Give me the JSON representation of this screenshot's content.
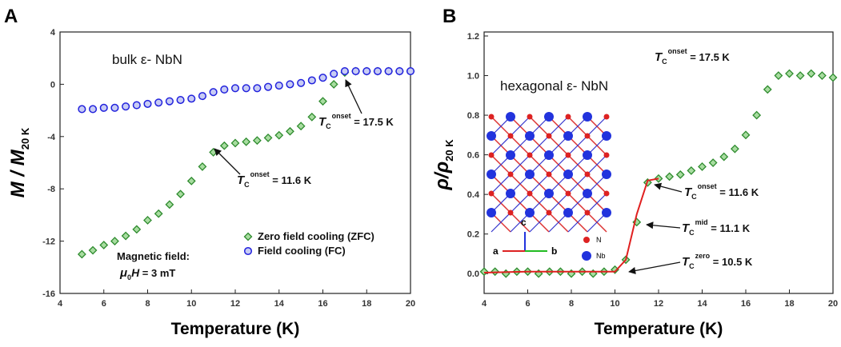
{
  "chart_data": [
    {
      "type": "scatter",
      "panel_label": "A",
      "x_label": "Temperature (K)",
      "y_label": {
        "main": "M / M",
        "sub": "20 K"
      },
      "x": [
        5,
        5.5,
        6,
        6.5,
        7,
        7.5,
        8,
        8.5,
        9,
        9.5,
        10,
        10.5,
        11,
        11.5,
        12,
        12.5,
        13,
        13.5,
        14,
        14.5,
        15,
        15.5,
        16,
        16.5,
        17,
        17.5,
        18,
        18.5,
        19,
        19.5,
        20
      ],
      "series": [
        {
          "name": "Zero field cooling (ZFC)",
          "color": "#2e8b2e",
          "marker": "diamond",
          "values": [
            -13.0,
            -12.7,
            -12.3,
            -12.0,
            -11.6,
            -11.1,
            -10.4,
            -9.9,
            -9.2,
            -8.4,
            -7.4,
            -6.3,
            -5.2,
            -4.7,
            -4.5,
            -4.4,
            -4.3,
            -4.1,
            -3.9,
            -3.6,
            -3.2,
            -2.5,
            -1.3,
            0.0,
            0.9,
            1.0,
            1.0,
            1.0,
            1.0,
            1.0,
            1.0
          ]
        },
        {
          "name": "Field cooling (FC)",
          "color": "#2222dd",
          "marker": "circle",
          "values": [
            -1.9,
            -1.9,
            -1.8,
            -1.8,
            -1.7,
            -1.6,
            -1.5,
            -1.4,
            -1.3,
            -1.2,
            -1.1,
            -0.9,
            -0.6,
            -0.4,
            -0.3,
            -0.3,
            -0.3,
            -0.2,
            -0.1,
            0.0,
            0.1,
            0.3,
            0.5,
            0.8,
            1.0,
            1.0,
            1.0,
            1.0,
            1.0,
            1.0,
            1.0
          ]
        }
      ],
      "xlim": [
        4,
        20
      ],
      "xticks": [
        4,
        6,
        8,
        10,
        12,
        14,
        16,
        18,
        20
      ],
      "ylim": [
        -16,
        4
      ],
      "yticks": [
        -16,
        -12,
        -8,
        -4,
        0,
        4
      ],
      "annotations": [
        {
          "text": "bulk ε- NbN"
        },
        {
          "symbol": "T",
          "sub": "C",
          "sup": "onset",
          "text": " = 17.5 K"
        },
        {
          "symbol": "T",
          "sub": "C",
          "sup": "onset",
          "text": " = 11.6 K"
        },
        {
          "text": "Magnetic field:"
        },
        {
          "symbol": "μ",
          "sub": "0",
          "tail": "H",
          "text": " = 3 mT"
        }
      ]
    },
    {
      "type": "scatter",
      "panel_label": "B",
      "x_label": "Temperature (K)",
      "y_label": {
        "main": "ρ/ρ",
        "sub": "20 K"
      },
      "x": [
        4,
        4.5,
        5,
        5.5,
        6,
        6.5,
        7,
        7.5,
        8,
        8.5,
        9,
        9.5,
        10,
        10.5,
        11,
        11.5,
        12,
        12.5,
        13,
        13.5,
        14,
        14.5,
        15,
        15.5,
        16,
        16.5,
        17,
        17.5,
        18,
        18.5,
        19,
        19.5,
        20
      ],
      "series": [
        {
          "color": "#2e8b2e",
          "marker": "diamond",
          "values": [
            0.01,
            0.01,
            0.0,
            0.01,
            0.01,
            0.0,
            0.01,
            0.01,
            0.0,
            0.01,
            0.0,
            0.01,
            0.02,
            0.07,
            0.26,
            0.46,
            0.48,
            0.49,
            0.5,
            0.52,
            0.54,
            0.56,
            0.59,
            0.63,
            0.7,
            0.8,
            0.93,
            1.0,
            1.01,
            1.0,
            1.01,
            1.0,
            0.99
          ]
        },
        {
          "color": "#e02020",
          "marker": "line",
          "x": [
            4,
            6,
            8,
            10,
            10.5,
            11,
            11.5,
            12
          ],
          "values": [
            0.005,
            0.01,
            0.01,
            0.01,
            0.07,
            0.3,
            0.47,
            0.48
          ]
        }
      ],
      "xlim": [
        4,
        20
      ],
      "xticks": [
        4,
        6,
        8,
        10,
        12,
        14,
        16,
        18,
        20
      ],
      "ylim": [
        -0.1,
        1.2
      ],
      "yticks": [
        {
          "value": 0,
          "label": "0.0"
        },
        0.2,
        0.4,
        0.6,
        0.8,
        {
          "value": 1,
          "label": "1.0"
        },
        1.2
      ],
      "annotations": [
        {
          "text": "hexagonal ε- NbN"
        },
        {
          "symbol": "T",
          "sub": "C",
          "sup": "onset",
          "text": " = 17.5 K"
        },
        {
          "symbol": "T",
          "sub": "C",
          "sup": "onset",
          "text": " = 11.6 K"
        },
        {
          "symbol": "T",
          "sub": "C",
          "sup": "mid",
          "text": " = 11.1 K"
        },
        {
          "symbol": "T",
          "sub": "C",
          "sup": "zero",
          "text": " = 10.5 K"
        }
      ],
      "inset": {
        "axes": [
          "c",
          "a",
          "b"
        ],
        "legend": [
          "N",
          "Nb"
        ]
      }
    }
  ]
}
